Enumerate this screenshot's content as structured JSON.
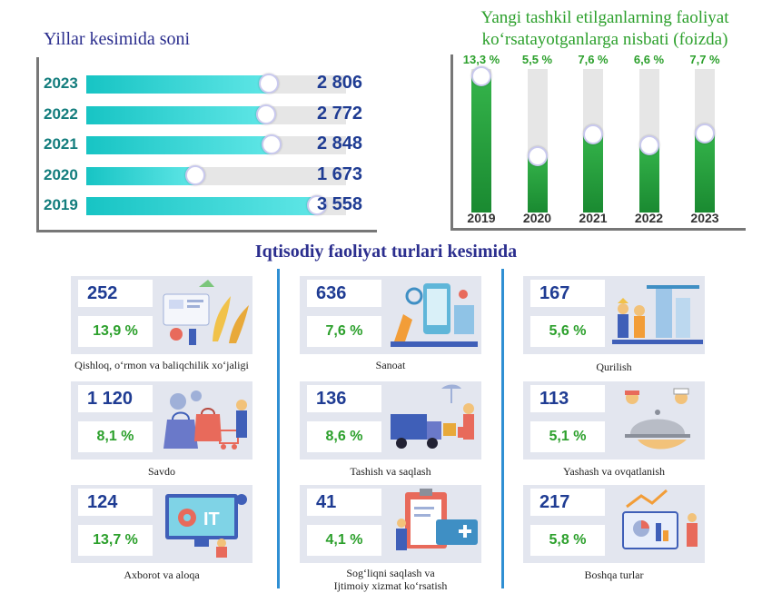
{
  "left_panel": {
    "title": "Yillar kesimida soni"
  },
  "right_panel": {
    "title_line1": "Yangi tashkil etilganlarning faoliyat",
    "title_line2": "ko‘rsatayotganlarga nisbati (foizda)"
  },
  "section_title": "Iqtisodiy faoliyat turlari kesimida",
  "chart_data": [
    {
      "type": "bar",
      "orientation": "horizontal",
      "title": "Yillar kesimida soni",
      "categories": [
        "2023",
        "2022",
        "2021",
        "2020",
        "2019"
      ],
      "values": [
        2806,
        2772,
        2848,
        1673,
        3558
      ],
      "value_labels": [
        "2 806",
        "2 772",
        "2 848",
        "1 673",
        "3 558"
      ],
      "xlim": [
        0,
        4000
      ],
      "grid": false,
      "colors": {
        "bar": "#17c4c4",
        "track": "#e6e6e6",
        "value_text": "#1f3c93",
        "year_text": "#137d7d"
      }
    },
    {
      "type": "bar",
      "orientation": "vertical",
      "title": "Yangi tashkil etilganlarning faoliyat ko‘rsatayotganlarga nisbati (foizda)",
      "categories": [
        "2019",
        "2020",
        "2021",
        "2022",
        "2023"
      ],
      "values": [
        13.3,
        5.5,
        7.6,
        6.6,
        7.7
      ],
      "value_labels": [
        "13,3 %",
        "5,5 %",
        "7,6 %",
        "6,6 %",
        "7,7 %"
      ],
      "ylim": [
        0,
        14
      ],
      "grid": false,
      "colors": {
        "bar": "#2ca02c",
        "track": "#e6e6e6",
        "label_text": "#2ca02c"
      }
    },
    {
      "type": "table",
      "title": "Iqtisodiy faoliyat turlari kesimida",
      "sectors": [
        {
          "name": "Qishloq, o‘rmon va baliqchilik xo‘jaligi",
          "count": "252",
          "percent": "13,9 %",
          "icon": "agriculture-icon"
        },
        {
          "name": "Sanoat",
          "count": "636",
          "percent": "7,6 %",
          "icon": "industry-icon"
        },
        {
          "name": "Qurilish",
          "count": "167",
          "percent": "5,6 %",
          "icon": "construction-icon"
        },
        {
          "name": "Savdo",
          "count": "1 120",
          "percent": "8,1 %",
          "icon": "shopping-icon"
        },
        {
          "name": "Tashish va saqlash",
          "count": "136",
          "percent": "8,6 %",
          "icon": "transport-icon"
        },
        {
          "name": "Yashash va ovqatlanish",
          "count": "113",
          "percent": "5,1 %",
          "icon": "food-service-icon"
        },
        {
          "name": "Axborot va aloqa",
          "count": "124",
          "percent": "13,7 %",
          "icon": "it-icon"
        },
        {
          "name_line1": "Sog‘liqni saqlash va",
          "name_line2": "Ijtimoiy xizmat ko‘rsatish",
          "count": "41",
          "percent": "4,1 %",
          "icon": "healthcare-icon"
        },
        {
          "name": "Boshqa turlar",
          "count": "217",
          "percent": "5,8 %",
          "icon": "other-sectors-icon"
        }
      ]
    }
  ]
}
